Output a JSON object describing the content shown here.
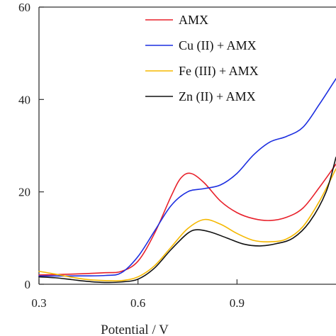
{
  "chart_data": {
    "type": "line",
    "xlabel": "Potential / V",
    "ylabel": "",
    "xlim": [
      0.3,
      1.2
    ],
    "ylim": [
      0,
      60
    ],
    "xticks": [
      0.3,
      0.6,
      0.9
    ],
    "yticks": [
      0,
      20,
      40,
      60
    ],
    "grid": false,
    "legend_position": "top-right",
    "series": [
      {
        "name": "AMX",
        "color": "#e8202a",
        "points": [
          [
            0.3,
            2.0
          ],
          [
            0.4,
            2.2
          ],
          [
            0.5,
            2.5
          ],
          [
            0.55,
            2.8
          ],
          [
            0.6,
            5.0
          ],
          [
            0.65,
            11.0
          ],
          [
            0.7,
            19.0
          ],
          [
            0.73,
            23.0
          ],
          [
            0.76,
            24.0
          ],
          [
            0.8,
            22.0
          ],
          [
            0.85,
            18.0
          ],
          [
            0.9,
            15.5
          ],
          [
            0.95,
            14.2
          ],
          [
            1.0,
            13.8
          ],
          [
            1.05,
            14.5
          ],
          [
            1.1,
            16.5
          ],
          [
            1.15,
            21.0
          ],
          [
            1.2,
            26.0
          ]
        ]
      },
      {
        "name": "Cu (II) + AMX",
        "color": "#1c2ee0",
        "points": [
          [
            0.3,
            1.8
          ],
          [
            0.4,
            1.8
          ],
          [
            0.5,
            1.9
          ],
          [
            0.55,
            2.5
          ],
          [
            0.6,
            6.0
          ],
          [
            0.65,
            11.5
          ],
          [
            0.7,
            17.0
          ],
          [
            0.75,
            20.0
          ],
          [
            0.8,
            20.7
          ],
          [
            0.85,
            21.5
          ],
          [
            0.9,
            24.0
          ],
          [
            0.95,
            28.0
          ],
          [
            1.0,
            30.8
          ],
          [
            1.05,
            32.0
          ],
          [
            1.1,
            34.0
          ],
          [
            1.15,
            39.0
          ],
          [
            1.2,
            44.5
          ]
        ]
      },
      {
        "name": "Fe (III) + AMX",
        "color": "#f5b800",
        "points": [
          [
            0.3,
            2.8
          ],
          [
            0.35,
            2.2
          ],
          [
            0.4,
            1.5
          ],
          [
            0.45,
            1.0
          ],
          [
            0.5,
            0.8
          ],
          [
            0.55,
            0.8
          ],
          [
            0.6,
            1.6
          ],
          [
            0.65,
            4.0
          ],
          [
            0.7,
            8.0
          ],
          [
            0.75,
            12.0
          ],
          [
            0.8,
            14.0
          ],
          [
            0.85,
            13.0
          ],
          [
            0.9,
            11.0
          ],
          [
            0.95,
            9.5
          ],
          [
            1.0,
            9.2
          ],
          [
            1.05,
            9.8
          ],
          [
            1.1,
            12.5
          ],
          [
            1.15,
            18.0
          ],
          [
            1.2,
            25.0
          ]
        ]
      },
      {
        "name": "Zn (II) + AMX",
        "color": "#111111",
        "points": [
          [
            0.3,
            1.6
          ],
          [
            0.35,
            1.4
          ],
          [
            0.4,
            1.0
          ],
          [
            0.45,
            0.6
          ],
          [
            0.5,
            0.4
          ],
          [
            0.55,
            0.5
          ],
          [
            0.6,
            1.1
          ],
          [
            0.65,
            3.5
          ],
          [
            0.7,
            7.5
          ],
          [
            0.75,
            11.0
          ],
          [
            0.78,
            11.8
          ],
          [
            0.82,
            11.3
          ],
          [
            0.87,
            10.0
          ],
          [
            0.92,
            8.7
          ],
          [
            0.97,
            8.3
          ],
          [
            1.02,
            8.8
          ],
          [
            1.07,
            10.0
          ],
          [
            1.12,
            13.5
          ],
          [
            1.17,
            20.0
          ],
          [
            1.2,
            27.5
          ]
        ]
      }
    ]
  }
}
